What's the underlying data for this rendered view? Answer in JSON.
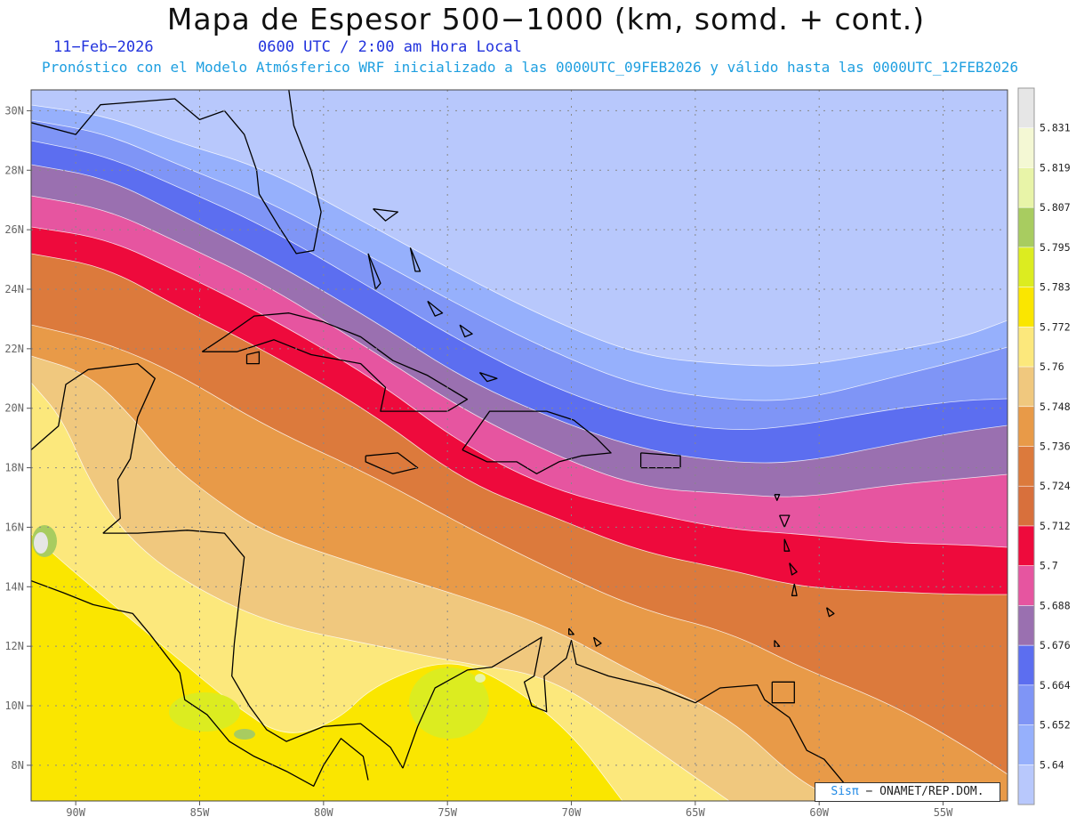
{
  "header": {
    "title": "Mapa de Espesor 500−1000 (km, somd. + cont.)",
    "date": "11−Feb−2026",
    "time": "0600 UTC / 2:00 am Hora Local",
    "subtitle": "Pronóstico con el Modelo Atmósferico WRF inicializado a las 0000UTC_09FEB2026 y válido hasta las  0000UTC_12FEB2026"
  },
  "map": {
    "lat_labels": [
      "30N",
      "28N",
      "26N",
      "24N",
      "22N",
      "20N",
      "18N",
      "16N",
      "14N",
      "12N",
      "10N",
      "8N"
    ],
    "lat_values": [
      30,
      28,
      26,
      24,
      22,
      20,
      18,
      16,
      14,
      12,
      10,
      8
    ],
    "lon_labels": [
      "90W",
      "85W",
      "80W",
      "75W",
      "70W",
      "65W",
      "60W",
      "55W"
    ],
    "lon_values": [
      -90,
      -85,
      -80,
      -75,
      -70,
      -65,
      -60,
      -55
    ],
    "extent": {
      "lon": [
        -91.8,
        -52.4
      ],
      "lat": [
        6.8,
        30.7
      ]
    },
    "colors": {
      "bands": [
        "#b8c8fc",
        "#96b0fc",
        "#7f95f6",
        "#5c6ef0",
        "#9a70b0",
        "#e655a0",
        "#ee0a3c",
        "#dc7a3c",
        "#e89a48",
        "#f0c87e",
        "#fce87c",
        "#fae600",
        "#dcec20",
        "#a8cc60",
        "#e8f4a8",
        "#e6e6e6"
      ],
      "grid": "#888888",
      "coast": "#000000"
    }
  },
  "legend": {
    "labels": [
      "5.831",
      "5.819",
      "5.807",
      "5.795",
      "5.783",
      "5.772",
      "5.76",
      "5.748",
      "5.736",
      "5.724",
      "5.712",
      "5.7",
      "5.688",
      "5.676",
      "5.664",
      "5.652",
      "5.64"
    ],
    "colors": [
      "#e6e6e6",
      "#f4f8d4",
      "#e8f4a8",
      "#a8cc60",
      "#dcec20",
      "#fae600",
      "#fce87c",
      "#f0c87e",
      "#e89a48",
      "#dc7a3c",
      "#d8703c",
      "#ee0a3c",
      "#e655a0",
      "#9a70b0",
      "#5c6ef0",
      "#7f95f6",
      "#96b0fc",
      "#b8c8fc"
    ]
  },
  "credit": {
    "sis": "Sisπ",
    "text": "− ONAMET/REP.DOM."
  }
}
